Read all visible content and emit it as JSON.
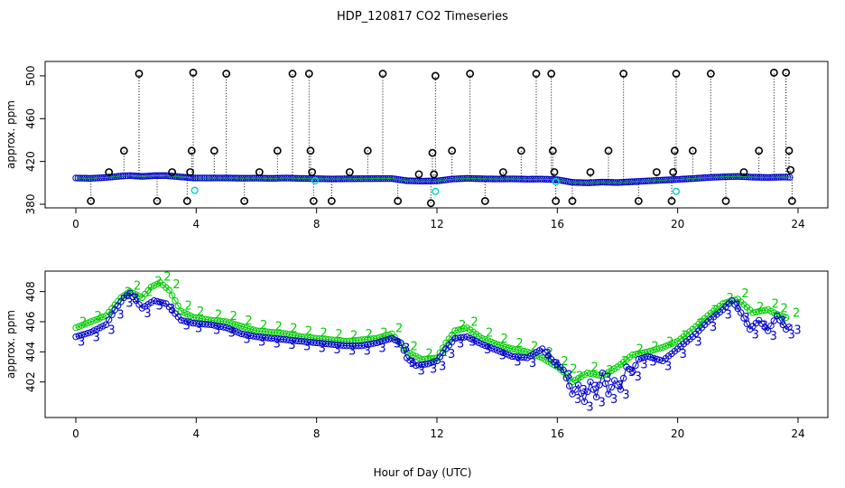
{
  "title": "HDP_120817  CO2 Timeseries",
  "xlabel": "Hour of Day (UTC)",
  "colors": {
    "background": "#ffffff",
    "black_series": "#000000",
    "blue_series": "#0000cc",
    "cyan_series": "#00cccc",
    "green_series": "#00cc00"
  },
  "chart_data": [
    {
      "type": "scatter",
      "ylabel": "approx. ppm",
      "xlim": [
        0,
        24
      ],
      "ylim": [
        380,
        505
      ],
      "x_ticks": [
        "0",
        "4",
        "8",
        "12",
        "16",
        "20",
        "24"
      ],
      "y_ticks": [
        "380",
        "420",
        "460",
        "500"
      ],
      "grid": false,
      "baseline_series": {
        "marker": "o",
        "points": [
          [
            0.0,
            404.5
          ],
          [
            0.5,
            404.2
          ],
          [
            1.0,
            405.0
          ],
          [
            1.5,
            406.3
          ],
          [
            1.8,
            406.8
          ],
          [
            2.2,
            406.0
          ],
          [
            2.6,
            406.7
          ],
          [
            3.0,
            406.8
          ],
          [
            3.5,
            405.5
          ],
          [
            3.9,
            404.6
          ],
          [
            4.5,
            404.5
          ],
          [
            5.0,
            404.6
          ],
          [
            5.5,
            404.3
          ],
          [
            6.0,
            404.4
          ],
          [
            6.5,
            404.2
          ],
          [
            7.0,
            404.5
          ],
          [
            7.5,
            404.1
          ],
          [
            8.0,
            403.9
          ],
          [
            8.5,
            403.6
          ],
          [
            9.0,
            403.8
          ],
          [
            9.5,
            403.9
          ],
          [
            10.0,
            404.0
          ],
          [
            10.5,
            404.0
          ],
          [
            11.0,
            402.0
          ],
          [
            11.5,
            401.6
          ],
          [
            12.0,
            401.8
          ],
          [
            12.5,
            403.5
          ],
          [
            13.0,
            404.2
          ],
          [
            13.5,
            403.8
          ],
          [
            14.0,
            403.6
          ],
          [
            14.5,
            403.7
          ],
          [
            15.0,
            403.4
          ],
          [
            15.5,
            403.5
          ],
          [
            16.0,
            402.9
          ],
          [
            16.5,
            400.5
          ],
          [
            17.0,
            400.0
          ],
          [
            17.5,
            400.7
          ],
          [
            18.0,
            400.3
          ],
          [
            18.5,
            401.0
          ],
          [
            19.0,
            401.8
          ],
          [
            19.5,
            402.5
          ],
          [
            20.0,
            403.2
          ],
          [
            20.5,
            404.0
          ],
          [
            21.0,
            405.0
          ],
          [
            21.5,
            405.6
          ],
          [
            22.0,
            406.0
          ],
          [
            22.5,
            405.3
          ],
          [
            23.0,
            405.0
          ],
          [
            23.5,
            405.4
          ],
          [
            23.8,
            405.2
          ]
        ]
      },
      "spike_series": {
        "marker": "o",
        "points": [
          [
            0.5,
            383
          ],
          [
            1.1,
            410
          ],
          [
            1.6,
            430
          ],
          [
            2.1,
            502
          ],
          [
            2.7,
            383
          ],
          [
            3.2,
            410
          ],
          [
            3.7,
            383
          ],
          [
            3.8,
            410
          ],
          [
            3.85,
            430
          ],
          [
            3.9,
            503
          ],
          [
            4.6,
            430
          ],
          [
            5.0,
            502
          ],
          [
            5.6,
            383
          ],
          [
            6.1,
            410
          ],
          [
            6.7,
            430
          ],
          [
            7.2,
            502
          ],
          [
            7.75,
            502
          ],
          [
            7.8,
            430
          ],
          [
            7.85,
            410
          ],
          [
            7.9,
            383
          ],
          [
            8.5,
            383
          ],
          [
            9.1,
            410
          ],
          [
            9.7,
            430
          ],
          [
            10.2,
            502
          ],
          [
            10.7,
            383
          ],
          [
            11.4,
            408
          ],
          [
            11.8,
            381
          ],
          [
            11.85,
            428
          ],
          [
            11.9,
            408
          ],
          [
            11.95,
            500
          ],
          [
            12.5,
            430
          ],
          [
            13.1,
            502
          ],
          [
            13.6,
            383
          ],
          [
            14.2,
            410
          ],
          [
            14.8,
            430
          ],
          [
            15.3,
            502
          ],
          [
            15.8,
            502
          ],
          [
            15.85,
            430
          ],
          [
            15.9,
            410
          ],
          [
            15.95,
            383
          ],
          [
            16.5,
            383
          ],
          [
            17.1,
            410
          ],
          [
            17.7,
            430
          ],
          [
            18.2,
            502
          ],
          [
            18.7,
            383
          ],
          [
            19.3,
            410
          ],
          [
            19.8,
            383
          ],
          [
            19.85,
            410
          ],
          [
            19.9,
            430
          ],
          [
            19.95,
            502
          ],
          [
            20.5,
            430
          ],
          [
            21.1,
            502
          ],
          [
            21.6,
            383
          ],
          [
            22.2,
            410
          ],
          [
            22.7,
            430
          ],
          [
            23.2,
            503
          ],
          [
            23.6,
            503
          ],
          [
            23.7,
            430
          ],
          [
            23.75,
            412
          ],
          [
            23.8,
            383
          ]
        ]
      },
      "cyan_points": [
        [
          3.95,
          393
        ],
        [
          11.95,
          392
        ],
        [
          19.95,
          392
        ],
        [
          15.95,
          401
        ],
        [
          7.95,
          402
        ]
      ]
    },
    {
      "type": "line",
      "ylabel": "approx. ppm",
      "xlim": [
        0,
        24
      ],
      "ylim": [
        400,
        409
      ],
      "x_ticks": [
        "0",
        "4",
        "8",
        "12",
        "16",
        "20",
        "24"
      ],
      "y_ticks": [
        "402",
        "404",
        "406",
        "408"
      ],
      "grid": false,
      "series": [
        {
          "name": "2",
          "marker": "2",
          "points": [
            [
              0.0,
              405.6
            ],
            [
              0.5,
              406.0
            ],
            [
              1.0,
              406.4
            ],
            [
              1.5,
              407.6
            ],
            [
              1.8,
              408.0
            ],
            [
              2.2,
              407.6
            ],
            [
              2.5,
              408.3
            ],
            [
              2.8,
              408.6
            ],
            [
              3.1,
              408.1
            ],
            [
              3.5,
              406.7
            ],
            [
              3.9,
              406.3
            ],
            [
              4.5,
              406.1
            ],
            [
              5.0,
              406.0
            ],
            [
              5.5,
              405.7
            ],
            [
              6.0,
              405.4
            ],
            [
              6.5,
              405.3
            ],
            [
              7.0,
              405.2
            ],
            [
              7.5,
              405.0
            ],
            [
              8.0,
              404.9
            ],
            [
              8.5,
              404.8
            ],
            [
              9.0,
              404.7
            ],
            [
              9.5,
              404.8
            ],
            [
              10.0,
              404.9
            ],
            [
              10.5,
              405.2
            ],
            [
              11.0,
              404.0
            ],
            [
              11.5,
              403.5
            ],
            [
              12.0,
              403.6
            ],
            [
              12.3,
              404.6
            ],
            [
              12.6,
              405.4
            ],
            [
              13.0,
              405.6
            ],
            [
              13.5,
              404.9
            ],
            [
              14.0,
              404.5
            ],
            [
              14.5,
              404.2
            ],
            [
              15.0,
              404.0
            ],
            [
              15.5,
              403.6
            ],
            [
              16.0,
              403.0
            ],
            [
              16.3,
              402.5
            ],
            [
              16.5,
              402.0
            ],
            [
              17.0,
              402.6
            ],
            [
              17.5,
              402.4
            ],
            [
              18.0,
              403.0
            ],
            [
              18.5,
              403.8
            ],
            [
              19.0,
              404.0
            ],
            [
              19.5,
              404.3
            ],
            [
              20.0,
              404.7
            ],
            [
              20.5,
              405.5
            ],
            [
              21.0,
              406.4
            ],
            [
              21.5,
              407.2
            ],
            [
              22.0,
              407.5
            ],
            [
              22.5,
              406.6
            ],
            [
              23.0,
              406.8
            ],
            [
              23.3,
              406.5
            ],
            [
              23.7,
              406.2
            ]
          ]
        },
        {
          "name": "3",
          "marker": "3",
          "points": [
            [
              0.0,
              405.0
            ],
            [
              0.5,
              405.3
            ],
            [
              1.0,
              405.8
            ],
            [
              1.3,
              406.8
            ],
            [
              1.6,
              407.6
            ],
            [
              1.8,
              407.9
            ],
            [
              2.2,
              406.9
            ],
            [
              2.6,
              407.4
            ],
            [
              3.0,
              407.2
            ],
            [
              3.5,
              406.1
            ],
            [
              3.9,
              405.9
            ],
            [
              4.5,
              405.8
            ],
            [
              5.0,
              405.6
            ],
            [
              5.5,
              405.2
            ],
            [
              6.0,
              405.0
            ],
            [
              6.5,
              404.9
            ],
            [
              7.0,
              404.8
            ],
            [
              7.5,
              404.7
            ],
            [
              8.0,
              404.6
            ],
            [
              8.5,
              404.5
            ],
            [
              9.0,
              404.4
            ],
            [
              9.5,
              404.4
            ],
            [
              10.0,
              404.6
            ],
            [
              10.5,
              404.9
            ],
            [
              10.8,
              404.6
            ],
            [
              11.0,
              403.6
            ],
            [
              11.3,
              403.1
            ],
            [
              11.7,
              403.2
            ],
            [
              12.0,
              403.4
            ],
            [
              12.3,
              404.2
            ],
            [
              12.6,
              404.9
            ],
            [
              13.0,
              405.0
            ],
            [
              13.5,
              404.5
            ],
            [
              14.0,
              404.1
            ],
            [
              14.5,
              403.7
            ],
            [
              15.0,
              403.6
            ],
            [
              15.5,
              404.2
            ],
            [
              15.8,
              403.5
            ],
            [
              16.2,
              402.8
            ],
            [
              16.5,
              401.2
            ],
            [
              16.7,
              401.8
            ],
            [
              16.9,
              400.7
            ],
            [
              17.1,
              402.0
            ],
            [
              17.3,
              401.0
            ],
            [
              17.5,
              402.6
            ],
            [
              17.7,
              401.2
            ],
            [
              17.9,
              402.1
            ],
            [
              18.1,
              401.5
            ],
            [
              18.3,
              403.0
            ],
            [
              18.5,
              402.7
            ],
            [
              18.7,
              403.5
            ],
            [
              19.0,
              403.7
            ],
            [
              19.5,
              403.4
            ],
            [
              20.0,
              404.2
            ],
            [
              20.5,
              405.0
            ],
            [
              21.0,
              406.0
            ],
            [
              21.5,
              406.8
            ],
            [
              21.8,
              407.4
            ],
            [
              22.1,
              406.6
            ],
            [
              22.4,
              405.5
            ],
            [
              22.7,
              406.1
            ],
            [
              23.0,
              405.4
            ],
            [
              23.3,
              406.4
            ],
            [
              23.6,
              405.5
            ],
            [
              23.8,
              405.8
            ]
          ]
        }
      ]
    }
  ]
}
